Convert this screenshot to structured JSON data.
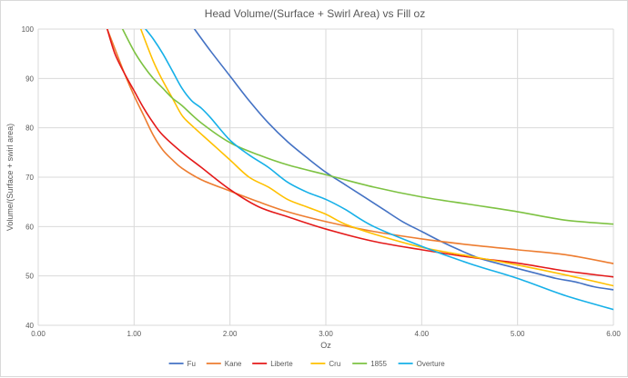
{
  "chart_data": {
    "type": "line",
    "title": "Head Volume/(Surface + Swirl Area) vs Fill oz",
    "xlabel": "Oz",
    "ylabel": "Volume/(Surface + swirl area)",
    "xlim": [
      0,
      6
    ],
    "ylim": [
      40,
      100
    ],
    "xticks": [
      "0.00",
      "1.00",
      "2.00",
      "3.00",
      "4.00",
      "5.00",
      "6.00"
    ],
    "yticks": [
      "40",
      "50",
      "60",
      "70",
      "80",
      "90",
      "100"
    ],
    "grid": true,
    "legend": "bottom",
    "series": [
      {
        "name": "Fu",
        "color": "#4472c4",
        "x": [
          1.63,
          1.8,
          2.0,
          2.2,
          2.4,
          2.6,
          2.8,
          3.0,
          3.2,
          3.4,
          3.6,
          3.8,
          4.0,
          4.2,
          4.4,
          4.6,
          4.8,
          5.0,
          5.2,
          5.4,
          5.6,
          5.8,
          6.0
        ],
        "y": [
          100,
          95.5,
          90.5,
          85.5,
          81.0,
          77.2,
          74.0,
          71.0,
          68.5,
          66.0,
          63.5,
          61.0,
          59.0,
          57.0,
          55.2,
          53.6,
          52.5,
          51.5,
          50.5,
          49.5,
          48.8,
          47.8,
          47.2
        ]
      },
      {
        "name": "Kane",
        "color": "#ed7d31",
        "x": [
          0.72,
          0.8,
          0.9,
          1.0,
          1.1,
          1.2,
          1.3,
          1.4,
          1.5,
          1.7,
          2.0,
          2.3,
          2.6,
          3.0,
          3.5,
          4.0,
          4.5,
          5.0,
          5.5,
          6.0
        ],
        "y": [
          100,
          96.0,
          91.0,
          86.5,
          82.5,
          78.5,
          75.5,
          73.5,
          71.8,
          69.5,
          67.2,
          65.0,
          63.0,
          61.0,
          59.0,
          57.5,
          56.3,
          55.3,
          54.3,
          52.5
        ]
      },
      {
        "name": "Liberte",
        "color": "#e41a1a",
        "x": [
          0.72,
          0.8,
          0.9,
          1.0,
          1.1,
          1.2,
          1.3,
          1.5,
          1.7,
          2.0,
          2.3,
          2.6,
          3.0,
          3.5,
          4.0,
          4.5,
          5.0,
          5.5,
          6.0
        ],
        "y": [
          100,
          95.0,
          91.0,
          87.5,
          84.0,
          81.0,
          78.5,
          75.0,
          72.0,
          67.5,
          64.0,
          62.0,
          59.5,
          57.0,
          55.3,
          53.8,
          52.6,
          51.0,
          49.8
        ]
      },
      {
        "name": "Cru",
        "color": "#ffc000",
        "x": [
          1.07,
          1.2,
          1.3,
          1.4,
          1.5,
          1.6,
          1.8,
          2.0,
          2.2,
          2.4,
          2.6,
          2.8,
          3.0,
          3.2,
          3.5,
          4.0,
          4.5,
          5.0,
          5.5,
          6.0
        ],
        "y": [
          100,
          93.5,
          89.5,
          86.0,
          82.5,
          80.5,
          77.0,
          73.5,
          70.0,
          68.0,
          65.5,
          64.0,
          62.5,
          60.5,
          58.5,
          55.8,
          54.0,
          52.2,
          50.2,
          48.0
        ]
      },
      {
        "name": "1855",
        "color": "#7dc242",
        "x": [
          0.88,
          1.0,
          1.1,
          1.2,
          1.3,
          1.4,
          1.5,
          1.7,
          2.0,
          2.3,
          2.6,
          3.0,
          3.5,
          4.0,
          4.5,
          5.0,
          5.5,
          6.0
        ],
        "y": [
          100,
          95.5,
          92.5,
          90.0,
          88.0,
          86.0,
          84.5,
          81.0,
          77.0,
          74.5,
          72.5,
          70.5,
          68.0,
          66.0,
          64.5,
          63.0,
          61.3,
          60.5
        ]
      },
      {
        "name": "Overture",
        "color": "#16b0e8",
        "x": [
          1.12,
          1.2,
          1.3,
          1.4,
          1.5,
          1.6,
          1.7,
          1.8,
          2.0,
          2.2,
          2.4,
          2.6,
          2.8,
          3.0,
          3.2,
          3.5,
          4.0,
          4.5,
          5.0,
          5.5,
          6.0
        ],
        "y": [
          100,
          98.0,
          95.0,
          91.5,
          88.0,
          85.5,
          84.0,
          82.0,
          77.5,
          74.5,
          72.0,
          69.0,
          67.0,
          65.5,
          63.5,
          60.0,
          56.0,
          52.5,
          49.5,
          46.0,
          43.2
        ]
      }
    ]
  }
}
